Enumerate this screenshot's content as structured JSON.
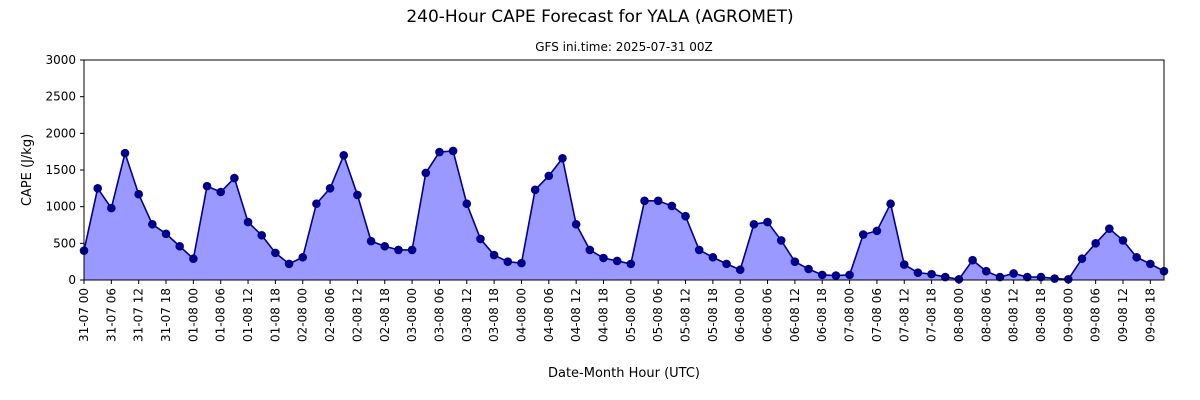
{
  "chart_data": {
    "type": "area",
    "title": "240-Hour CAPE Forecast for YALA (AGROMET)",
    "subtitle": "GFS ini.time: 2025-07-31 00Z",
    "xlabel": "Date-Month Hour (UTC)",
    "ylabel": "CAPE (J/kg)",
    "categories": [
      "31-07 00",
      null,
      "31-07 06",
      null,
      "31-07 12",
      null,
      "31-07 18",
      null,
      "01-08 00",
      null,
      "01-08 06",
      null,
      "01-08 12",
      null,
      "01-08 18",
      null,
      "02-08 00",
      null,
      "02-08 06",
      null,
      "02-08 12",
      null,
      "02-08 18",
      null,
      "03-08 00",
      null,
      "03-08 06",
      null,
      "03-08 12",
      null,
      "03-08 18",
      null,
      "04-08 00",
      null,
      "04-08 06",
      null,
      "04-08 12",
      null,
      "04-08 18",
      null,
      "05-08 00",
      null,
      "05-08 06",
      null,
      "05-08 12",
      null,
      "05-08 18",
      null,
      "06-08 00",
      null,
      "06-08 06",
      null,
      "06-08 12",
      null,
      "06-08 18",
      null,
      "07-08 00",
      null,
      "07-08 06",
      null,
      "07-08 12",
      null,
      "07-08 18",
      null,
      "08-08 00",
      null,
      "08-08 06",
      null,
      "08-08 12",
      null,
      "08-08 18",
      null,
      "09-08 00",
      null,
      "09-08 06",
      null,
      "09-08 12",
      null,
      "09-08 18",
      null
    ],
    "values": [
      400,
      1250,
      980,
      1730,
      1170,
      760,
      630,
      460,
      290,
      1280,
      1200,
      1390,
      790,
      610,
      370,
      220,
      310,
      1040,
      1250,
      1700,
      1160,
      530,
      460,
      410,
      410,
      1460,
      1745,
      1760,
      1040,
      560,
      340,
      250,
      230,
      1230,
      1420,
      1660,
      760,
      410,
      300,
      260,
      220,
      1080,
      1080,
      1010,
      870,
      410,
      310,
      220,
      140,
      760,
      790,
      540,
      250,
      150,
      70,
      60,
      70,
      620,
      670,
      1040,
      210,
      100,
      80,
      40,
      10,
      270,
      120,
      40,
      90,
      40,
      40,
      20,
      10,
      290,
      500,
      700,
      540,
      310,
      220,
      120
    ],
    "color": "#00008b",
    "fill_color": "#9999ff",
    "ylim": [
      0,
      3000
    ],
    "yticks": [
      0,
      500,
      1000,
      1500,
      2000,
      2500,
      3000
    ]
  }
}
